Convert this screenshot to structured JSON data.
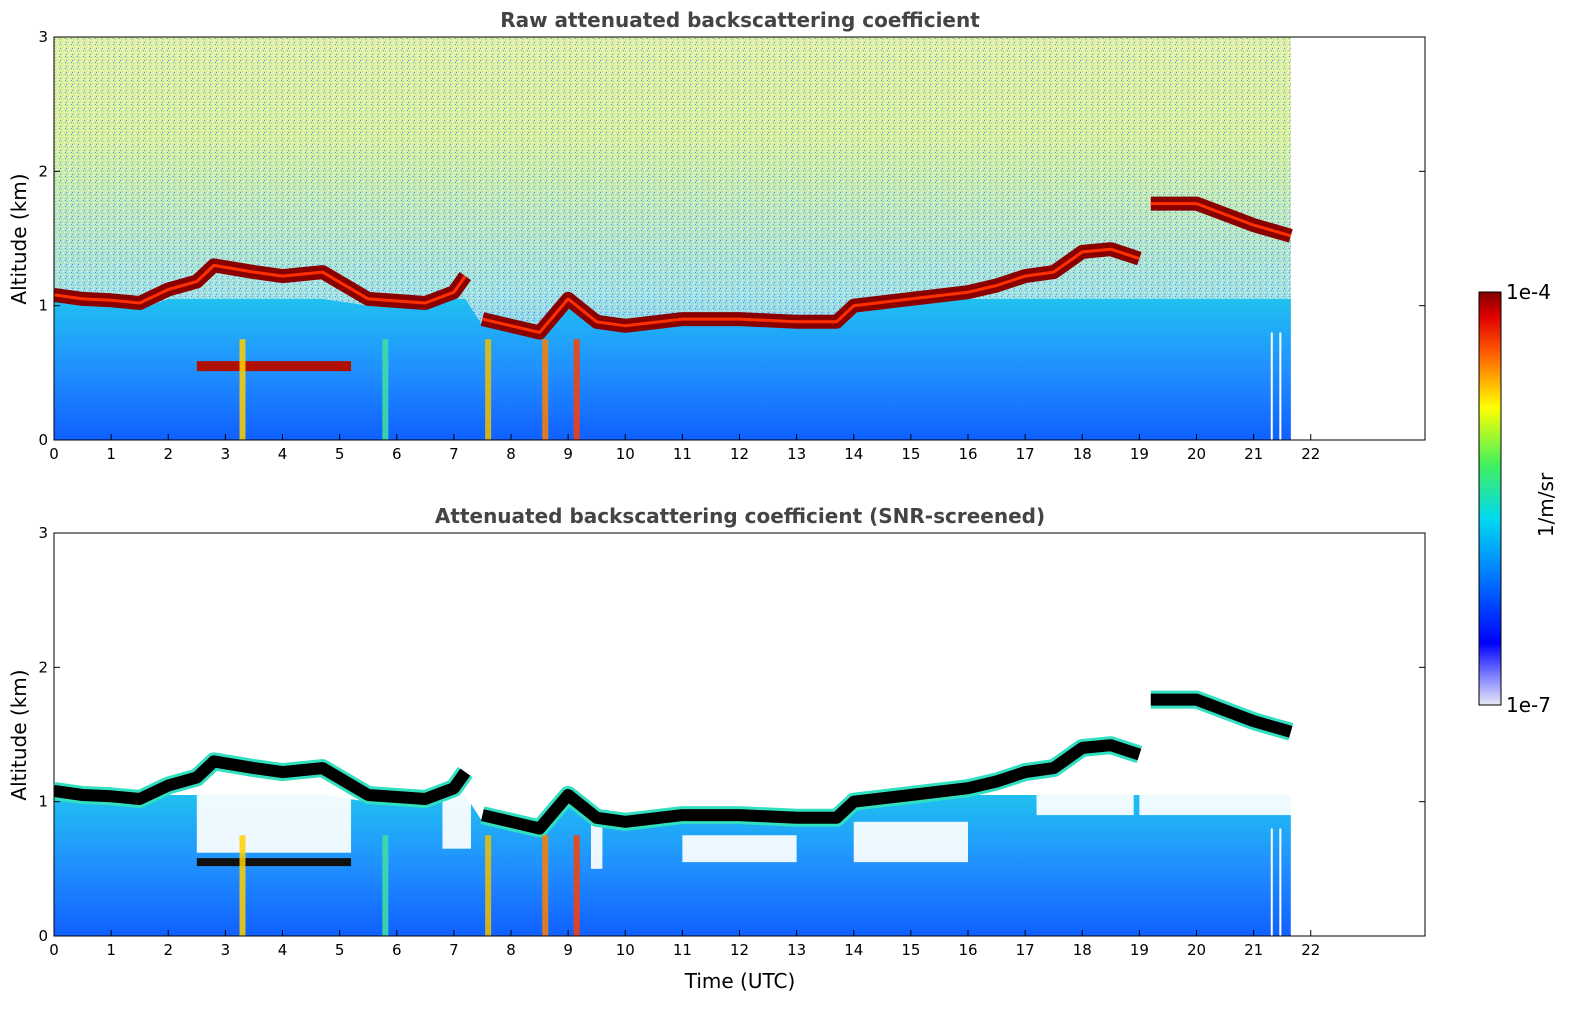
{
  "chart_data": [
    {
      "type": "heatmap",
      "title": "Raw attenuated backscattering coefficient",
      "xlabel": "",
      "ylabel": "Altitude (km)",
      "xlim": [
        0,
        24
      ],
      "ylim": [
        0,
        3
      ],
      "x_ticks": [
        "0",
        "1",
        "2",
        "3",
        "4",
        "5",
        "6",
        "7",
        "8",
        "9",
        "10",
        "11",
        "12",
        "13",
        "14",
        "15",
        "16",
        "17",
        "18",
        "19",
        "20",
        "21",
        "22"
      ],
      "y_ticks": [
        "0",
        "1",
        "2",
        "3"
      ],
      "data_end_time_utc": 21.65,
      "cloud_layer": {
        "time_utc": [
          0,
          0.5,
          1.0,
          1.5,
          2.0,
          2.5,
          2.8,
          3.5,
          4.0,
          4.7,
          5.5,
          6.5,
          7.0,
          7.2,
          7.5,
          8.0,
          8.5,
          9.0,
          9.5,
          10,
          11,
          12,
          13,
          13.7,
          14,
          15,
          16,
          16.5,
          17,
          17.5,
          18,
          18.5,
          19,
          19.2,
          20,
          21,
          21.65
        ],
        "altitude_km": [
          1.08,
          1.05,
          1.04,
          1.02,
          1.12,
          1.18,
          1.3,
          1.25,
          1.22,
          1.25,
          1.05,
          1.02,
          1.1,
          1.22,
          0.9,
          0.85,
          0.8,
          1.05,
          0.88,
          0.85,
          0.9,
          0.9,
          0.88,
          0.88,
          1.0,
          1.05,
          1.1,
          1.15,
          1.22,
          1.25,
          1.4,
          1.42,
          1.35,
          1.76,
          1.76,
          1.6,
          1.52
        ]
      },
      "lower_layer": {
        "time_start": 2.5,
        "time_end": 5.2,
        "altitude_km": 0.55
      }
    },
    {
      "type": "heatmap",
      "title": "Attenuated backscattering coefficient (SNR-screened)",
      "xlabel": "Time (UTC)",
      "ylabel": "Altitude (km)",
      "xlim": [
        0,
        24
      ],
      "ylim": [
        0,
        3
      ],
      "x_ticks": [
        "0",
        "1",
        "2",
        "3",
        "4",
        "5",
        "6",
        "7",
        "8",
        "9",
        "10",
        "11",
        "12",
        "13",
        "14",
        "15",
        "16",
        "17",
        "18",
        "19",
        "20",
        "21",
        "22"
      ],
      "y_ticks": [
        "0",
        "1",
        "2",
        "3"
      ],
      "data_end_time_utc": 21.65
    }
  ],
  "colorbar": {
    "label": "1/m/sr",
    "max_label": "1e-4",
    "min_label": "1e-7",
    "scale": "log",
    "colormap": [
      "#e8e8f8",
      "#0000ff",
      "#0096ff",
      "#00e0e0",
      "#50f050",
      "#ffff00",
      "#ff8000",
      "#ff0000",
      "#800000"
    ]
  }
}
